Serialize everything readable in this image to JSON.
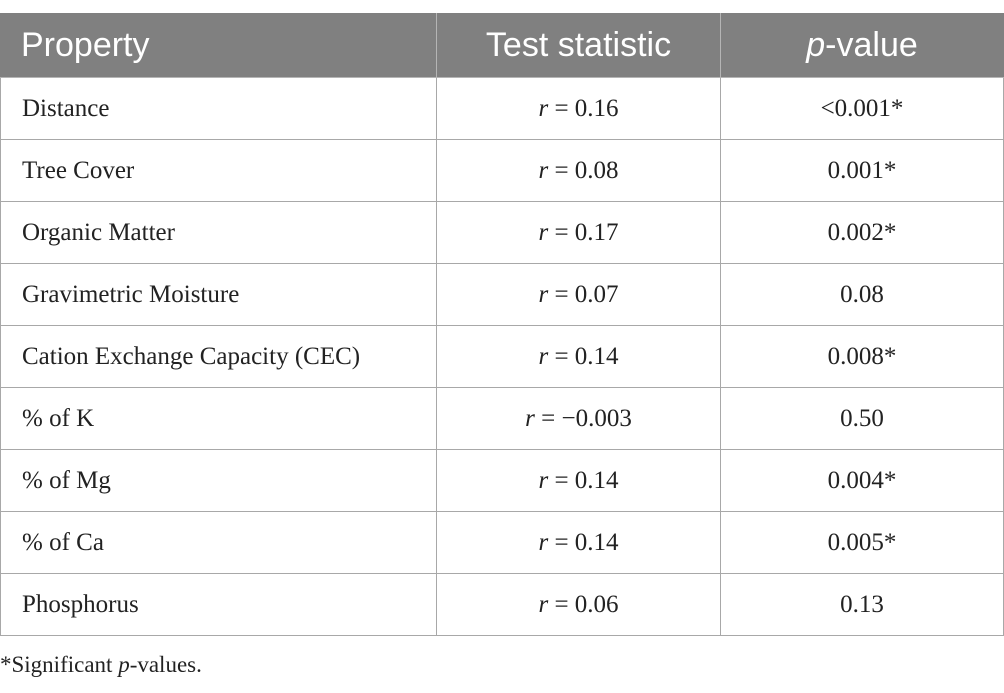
{
  "table": {
    "headers": {
      "property": "Property",
      "test_statistic": "Test statistic",
      "p_value_italic": "p",
      "p_value_rest": "-value"
    },
    "stat_symbol": "r",
    "rows": [
      {
        "property": "Distance",
        "stat_value": " = 0.16",
        "p_value": "<0.001*"
      },
      {
        "property": "Tree Cover",
        "stat_value": " = 0.08",
        "p_value": "0.001*"
      },
      {
        "property": "Organic Matter",
        "stat_value": " = 0.17",
        "p_value": "0.002*"
      },
      {
        "property": "Gravimetric Moisture",
        "stat_value": " = 0.07",
        "p_value": "0.08"
      },
      {
        "property": "Cation Exchange Capacity (CEC)",
        "stat_value": " = 0.14",
        "p_value": "0.008*"
      },
      {
        "property": "% of K",
        "stat_value": " = −0.003",
        "p_value": "0.50"
      },
      {
        "property": "% of Mg",
        "stat_value": " = 0.14",
        "p_value": "0.004*"
      },
      {
        "property": "% of Ca",
        "stat_value": " = 0.14",
        "p_value": "0.005*"
      },
      {
        "property": "Phosphorus",
        "stat_value": " = 0.06",
        "p_value": "0.13"
      }
    ]
  },
  "footnote": {
    "prefix": "*Significant ",
    "italic": "p",
    "suffix": "-values."
  },
  "colors": {
    "header_bg": "#808080",
    "header_text": "#ffffff",
    "grid": "#a8a8a8",
    "body_text": "#222222"
  }
}
